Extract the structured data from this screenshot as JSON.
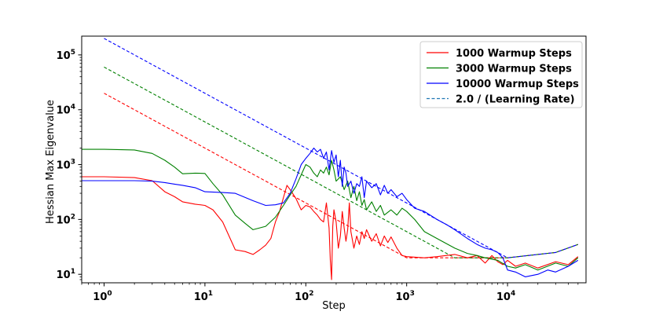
{
  "chart_data": {
    "type": "line",
    "title": "",
    "xlabel": "Step",
    "ylabel": "Hessian Max Eigenvalue",
    "xscale": "log",
    "yscale": "log",
    "xlim": [
      0.6,
      60000
    ],
    "ylim": [
      7,
      220000
    ],
    "grid": false,
    "legend_position": "top-right",
    "x_ticks": [
      {
        "value": 1,
        "base": "10",
        "exp": "0"
      },
      {
        "value": 10,
        "base": "10",
        "exp": "1"
      },
      {
        "value": 100,
        "base": "10",
        "exp": "2"
      },
      {
        "value": 1000,
        "base": "10",
        "exp": "3"
      },
      {
        "value": 10000,
        "base": "10",
        "exp": "4"
      }
    ],
    "y_ticks": [
      {
        "value": 10,
        "base": "10",
        "exp": "1"
      },
      {
        "value": 100,
        "base": "10",
        "exp": "2"
      },
      {
        "value": 1000,
        "base": "10",
        "exp": "3"
      },
      {
        "value": 10000,
        "base": "10",
        "exp": "4"
      },
      {
        "value": 100000,
        "base": "10",
        "exp": "5"
      }
    ],
    "series": [
      {
        "name": "1000 Warmup Steps",
        "color": "#ff0000",
        "style": "solid",
        "points": [
          [
            0.6,
            600
          ],
          [
            1,
            600
          ],
          [
            2,
            580
          ],
          [
            3,
            510
          ],
          [
            4,
            320
          ],
          [
            5,
            260
          ],
          [
            6,
            210
          ],
          [
            8,
            190
          ],
          [
            10,
            180
          ],
          [
            12,
            150
          ],
          [
            15,
            90
          ],
          [
            20,
            28
          ],
          [
            25,
            26
          ],
          [
            30,
            23
          ],
          [
            35,
            28
          ],
          [
            40,
            34
          ],
          [
            45,
            45
          ],
          [
            50,
            90
          ],
          [
            55,
            140
          ],
          [
            60,
            250
          ],
          [
            65,
            420
          ],
          [
            70,
            350
          ],
          [
            80,
            240
          ],
          [
            90,
            150
          ],
          [
            100,
            180
          ],
          [
            110,
            170
          ],
          [
            120,
            140
          ],
          [
            130,
            120
          ],
          [
            140,
            100
          ],
          [
            150,
            90
          ],
          [
            160,
            200
          ],
          [
            170,
            70
          ],
          [
            175,
            18
          ],
          [
            180,
            8
          ],
          [
            185,
            75
          ],
          [
            190,
            150
          ],
          [
            200,
            90
          ],
          [
            210,
            30
          ],
          [
            220,
            50
          ],
          [
            230,
            140
          ],
          [
            240,
            70
          ],
          [
            250,
            40
          ],
          [
            260,
            65
          ],
          [
            270,
            200
          ],
          [
            280,
            60
          ],
          [
            300,
            30
          ],
          [
            320,
            50
          ],
          [
            340,
            35
          ],
          [
            360,
            60
          ],
          [
            380,
            45
          ],
          [
            400,
            65
          ],
          [
            450,
            40
          ],
          [
            500,
            55
          ],
          [
            550,
            33
          ],
          [
            600,
            50
          ],
          [
            650,
            38
          ],
          [
            700,
            48
          ],
          [
            800,
            30
          ],
          [
            900,
            22
          ],
          [
            1000,
            21
          ],
          [
            1500,
            20
          ],
          [
            2000,
            21
          ],
          [
            3000,
            23
          ],
          [
            4000,
            20
          ],
          [
            5000,
            22
          ],
          [
            6000,
            16
          ],
          [
            7000,
            22
          ],
          [
            8000,
            17
          ],
          [
            9000,
            15
          ],
          [
            10000,
            18
          ],
          [
            12000,
            14
          ],
          [
            15000,
            16
          ],
          [
            20000,
            13
          ],
          [
            30000,
            17
          ],
          [
            40000,
            15
          ],
          [
            50000,
            21
          ]
        ]
      },
      {
        "name": "3000 Warmup Steps",
        "color": "#008000",
        "style": "solid",
        "points": [
          [
            0.6,
            1900
          ],
          [
            1,
            1900
          ],
          [
            2,
            1850
          ],
          [
            3,
            1600
          ],
          [
            4,
            1200
          ],
          [
            5,
            900
          ],
          [
            6,
            680
          ],
          [
            8,
            700
          ],
          [
            10,
            690
          ],
          [
            12,
            450
          ],
          [
            15,
            280
          ],
          [
            20,
            120
          ],
          [
            25,
            85
          ],
          [
            30,
            65
          ],
          [
            40,
            75
          ],
          [
            50,
            110
          ],
          [
            60,
            180
          ],
          [
            70,
            280
          ],
          [
            80,
            400
          ],
          [
            90,
            650
          ],
          [
            100,
            1000
          ],
          [
            110,
            900
          ],
          [
            120,
            700
          ],
          [
            130,
            600
          ],
          [
            140,
            800
          ],
          [
            150,
            700
          ],
          [
            160,
            900
          ],
          [
            170,
            650
          ],
          [
            180,
            1200
          ],
          [
            190,
            800
          ],
          [
            200,
            500
          ],
          [
            220,
            600
          ],
          [
            240,
            350
          ],
          [
            260,
            500
          ],
          [
            280,
            250
          ],
          [
            300,
            400
          ],
          [
            320,
            220
          ],
          [
            340,
            320
          ],
          [
            360,
            180
          ],
          [
            380,
            230
          ],
          [
            400,
            150
          ],
          [
            450,
            210
          ],
          [
            500,
            140
          ],
          [
            550,
            180
          ],
          [
            600,
            120
          ],
          [
            700,
            150
          ],
          [
            800,
            120
          ],
          [
            900,
            160
          ],
          [
            1000,
            140
          ],
          [
            1200,
            100
          ],
          [
            1500,
            60
          ],
          [
            2000,
            45
          ],
          [
            3000,
            30
          ],
          [
            4000,
            24
          ],
          [
            5000,
            22
          ],
          [
            6000,
            20
          ],
          [
            8000,
            18
          ],
          [
            10000,
            14
          ],
          [
            12000,
            13
          ],
          [
            15000,
            15
          ],
          [
            20000,
            12
          ],
          [
            30000,
            16
          ],
          [
            40000,
            14
          ],
          [
            50000,
            20
          ]
        ]
      },
      {
        "name": "10000 Warmup Steps",
        "color": "#0000ff",
        "style": "solid",
        "points": [
          [
            0.6,
            510
          ],
          [
            1,
            510
          ],
          [
            2,
            510
          ],
          [
            3,
            500
          ],
          [
            4,
            470
          ],
          [
            5,
            440
          ],
          [
            6,
            420
          ],
          [
            8,
            380
          ],
          [
            10,
            320
          ],
          [
            15,
            310
          ],
          [
            20,
            300
          ],
          [
            30,
            220
          ],
          [
            40,
            180
          ],
          [
            50,
            185
          ],
          [
            60,
            200
          ],
          [
            70,
            300
          ],
          [
            80,
            550
          ],
          [
            90,
            1000
          ],
          [
            100,
            1300
          ],
          [
            110,
            1600
          ],
          [
            120,
            2000
          ],
          [
            130,
            1700
          ],
          [
            140,
            1900
          ],
          [
            150,
            1300
          ],
          [
            160,
            1700
          ],
          [
            170,
            800
          ],
          [
            180,
            1800
          ],
          [
            190,
            1100
          ],
          [
            200,
            1500
          ],
          [
            210,
            600
          ],
          [
            220,
            1200
          ],
          [
            230,
            400
          ],
          [
            240,
            900
          ],
          [
            250,
            700
          ],
          [
            260,
            400
          ],
          [
            280,
            500
          ],
          [
            300,
            300
          ],
          [
            320,
            450
          ],
          [
            340,
            400
          ],
          [
            360,
            600
          ],
          [
            380,
            250
          ],
          [
            400,
            500
          ],
          [
            450,
            380
          ],
          [
            500,
            450
          ],
          [
            550,
            280
          ],
          [
            600,
            420
          ],
          [
            650,
            300
          ],
          [
            700,
            350
          ],
          [
            800,
            260
          ],
          [
            900,
            300
          ],
          [
            1000,
            230
          ],
          [
            1200,
            160
          ],
          [
            1500,
            140
          ],
          [
            2000,
            100
          ],
          [
            2500,
            80
          ],
          [
            3000,
            65
          ],
          [
            4000,
            45
          ],
          [
            5000,
            35
          ],
          [
            6000,
            30
          ],
          [
            7000,
            28
          ],
          [
            8000,
            25
          ],
          [
            9000,
            20
          ],
          [
            10000,
            12
          ],
          [
            12000,
            11
          ],
          [
            15000,
            9
          ],
          [
            20000,
            10
          ],
          [
            25000,
            12
          ],
          [
            30000,
            11
          ],
          [
            40000,
            14
          ],
          [
            50000,
            18
          ]
        ]
      },
      {
        "name": "2.0 / (Learning Rate)",
        "style": "dashed",
        "color": "#1f77b4",
        "groups": [
          {
            "color": "#ff0000",
            "points": [
              [
                1,
                20000
              ],
              [
                1000,
                20
              ],
              [
                10000,
                20
              ],
              [
                30000,
                25
              ],
              [
                50000,
                35
              ]
            ]
          },
          {
            "color": "#008000",
            "points": [
              [
                1,
                60000
              ],
              [
                3000,
                20
              ],
              [
                10000,
                20
              ],
              [
                30000,
                25
              ],
              [
                50000,
                35
              ]
            ]
          },
          {
            "color": "#0000ff",
            "points": [
              [
                1,
                200000
              ],
              [
                10000,
                20
              ],
              [
                30000,
                25
              ],
              [
                50000,
                35
              ]
            ]
          }
        ]
      }
    ],
    "legend": [
      {
        "label": "1000 Warmup Steps",
        "color": "#ff0000",
        "style": "solid"
      },
      {
        "label": "3000 Warmup Steps",
        "color": "#008000",
        "style": "solid"
      },
      {
        "label": "10000 Warmup Steps",
        "color": "#0000ff",
        "style": "solid"
      },
      {
        "label": "2.0 / (Learning Rate)",
        "color": "#1f77b4",
        "style": "dashed"
      }
    ]
  }
}
